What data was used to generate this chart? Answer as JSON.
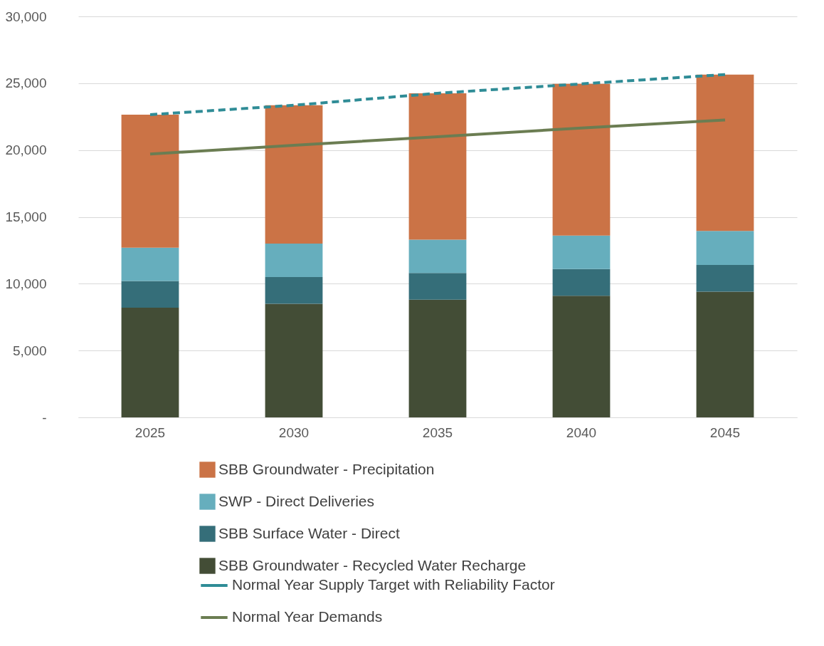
{
  "chart_data": {
    "type": "bar",
    "stacked": true,
    "categories": [
      "2025",
      "2030",
      "2035",
      "2040",
      "2045"
    ],
    "series": [
      {
        "name": "SBB Groundwater - Recycled Water Recharge",
        "color": "#434d36",
        "values": [
          8200,
          8500,
          8800,
          9100,
          9400
        ]
      },
      {
        "name": "SBB Surface Water - Direct",
        "color": "#356e79",
        "values": [
          2000,
          2000,
          2000,
          2000,
          2000
        ]
      },
      {
        "name": "SWP - Direct Deliveries",
        "color": "#66aebd",
        "values": [
          2500,
          2500,
          2500,
          2500,
          2550
        ]
      },
      {
        "name": "SBB Groundwater - Precipitation",
        "color": "#cb7346",
        "values": [
          9950,
          10350,
          10950,
          11350,
          11700
        ]
      },
      {
        "name": "Normal Year Supply Target with Reliability Factor",
        "type": "line",
        "line_style": "dashed",
        "color": "#2f8c96",
        "values": [
          22650,
          23350,
          24250,
          24950,
          25650
        ]
      },
      {
        "name": "Normal Year Demands",
        "type": "line",
        "line_style": "solid",
        "color": "#6b7d52",
        "values": [
          19700,
          20350,
          21000,
          21650,
          22250
        ]
      }
    ],
    "ylim": [
      0,
      30000
    ],
    "yticks": [
      {
        "value": 0,
        "label": "-"
      },
      {
        "value": 5000,
        "label": "5,000"
      },
      {
        "value": 10000,
        "label": "10,000"
      },
      {
        "value": 15000,
        "label": "15,000"
      },
      {
        "value": 20000,
        "label": "20,000"
      },
      {
        "value": 25000,
        "label": "25,000"
      },
      {
        "value": 30000,
        "label": "30,000"
      }
    ],
    "grid": "y",
    "legend": "bottom",
    "marker": "none"
  }
}
